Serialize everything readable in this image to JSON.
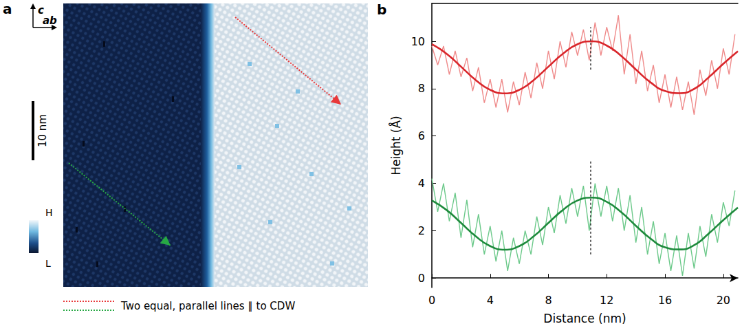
{
  "panel_a": {
    "label": "a",
    "axis_up": "c",
    "axis_right": "ab",
    "scale_bar": "10 nm",
    "colorbar_high": "H",
    "colorbar_low": "L",
    "legend_text": "Two equal, parallel lines ∥ to CDW",
    "lines": [
      {
        "color": "#e8393a"
      },
      {
        "color": "#27a844"
      }
    ]
  },
  "chart_data": {
    "type": "line",
    "panel_label": "b",
    "x_label": "Distance (nm)",
    "y_label": "Height (Å)",
    "xlim": [
      0,
      21
    ],
    "ylim": [
      -0.4,
      11.6
    ],
    "xticks": [
      0,
      4,
      8,
      12,
      16,
      20
    ],
    "yticks": [
      0,
      2,
      4,
      6,
      8,
      10
    ],
    "series": [
      {
        "color": "#ef8a8a",
        "line_style": "thin",
        "x": [
          0.0,
          0.4,
          0.8,
          1.2,
          1.6,
          2.0,
          2.4,
          2.8,
          3.2,
          3.6,
          4.0,
          4.4,
          4.8,
          5.2,
          5.6,
          6.0,
          6.4,
          6.8,
          7.2,
          7.6,
          8.0,
          8.4,
          8.8,
          9.2,
          9.6,
          10.0,
          10.4,
          10.8,
          11.2,
          11.6,
          12.0,
          12.4,
          12.8,
          13.2,
          13.6,
          14.0,
          14.4,
          14.8,
          15.2,
          15.6,
          16.0,
          16.4,
          16.8,
          17.2,
          17.6,
          18.0,
          18.4,
          18.8,
          19.2,
          19.6,
          20.0,
          20.4,
          20.8
        ],
        "values": [
          9.8,
          9.0,
          9.8,
          8.6,
          9.6,
          8.5,
          9.3,
          7.9,
          8.9,
          7.4,
          8.4,
          7.2,
          8.4,
          7.0,
          8.3,
          7.3,
          8.7,
          7.6,
          9.1,
          8.0,
          9.6,
          8.4,
          10.0,
          8.9,
          10.4,
          9.4,
          10.5,
          9.2,
          10.8,
          9.4,
          10.6,
          9.6,
          11.1,
          8.6,
          10.3,
          8.2,
          9.6,
          7.9,
          9.0,
          7.4,
          8.6,
          7.2,
          8.5,
          7.1,
          8.3,
          6.9,
          8.8,
          7.7,
          9.2,
          8.0,
          9.7,
          8.6,
          10.3
        ]
      },
      {
        "color": "#d9262b",
        "line_style": "thick",
        "x": [
          0,
          1,
          2,
          3,
          4,
          5,
          6,
          7,
          8,
          9,
          10,
          11,
          12,
          13,
          14,
          15,
          16,
          17,
          18,
          19,
          20,
          21
        ],
        "values": [
          9.88,
          9.48,
          8.93,
          8.37,
          7.95,
          7.8,
          7.95,
          8.37,
          8.93,
          9.48,
          9.88,
          10.0,
          9.82,
          9.38,
          8.81,
          8.27,
          7.9,
          7.81,
          7.99,
          8.48,
          9.05,
          9.58
        ]
      },
      {
        "color": "#6cc98a",
        "line_style": "thin",
        "x": [
          0.0,
          0.4,
          0.8,
          1.2,
          1.6,
          2.0,
          2.4,
          2.8,
          3.2,
          3.6,
          4.0,
          4.4,
          4.8,
          5.2,
          5.6,
          6.0,
          6.4,
          6.8,
          7.2,
          7.6,
          8.0,
          8.4,
          8.8,
          9.2,
          9.6,
          10.0,
          10.4,
          10.8,
          11.2,
          11.6,
          12.0,
          12.4,
          12.8,
          13.2,
          13.6,
          14.0,
          14.4,
          14.8,
          15.2,
          15.6,
          16.0,
          16.4,
          16.8,
          17.2,
          17.6,
          18.0,
          18.4,
          18.8,
          19.2,
          19.6,
          20.0,
          20.4,
          20.8
        ],
        "values": [
          4.2,
          2.8,
          4.0,
          2.4,
          3.6,
          1.7,
          3.3,
          1.3,
          2.7,
          1.0,
          2.2,
          0.7,
          2.0,
          0.3,
          1.7,
          0.6,
          2.0,
          1.0,
          2.6,
          1.4,
          3.0,
          1.9,
          3.5,
          2.3,
          3.8,
          2.6,
          3.9,
          2.0,
          4.0,
          2.6,
          3.9,
          2.4,
          3.8,
          2.0,
          3.5,
          1.5,
          3.0,
          1.0,
          2.4,
          0.6,
          1.9,
          0.3,
          1.8,
          0.1,
          1.9,
          0.4,
          2.2,
          0.9,
          2.7,
          1.5,
          3.2,
          2.2,
          3.7
        ]
      },
      {
        "color": "#1e8a3c",
        "line_style": "thick",
        "x": [
          0,
          1,
          2,
          3,
          4,
          5,
          6,
          7,
          8,
          9,
          10,
          11,
          12,
          13,
          14,
          15,
          16,
          17,
          18,
          19,
          20,
          21
        ],
        "values": [
          3.28,
          2.88,
          2.33,
          1.77,
          1.35,
          1.2,
          1.35,
          1.77,
          2.33,
          2.88,
          3.28,
          3.4,
          3.22,
          2.78,
          2.21,
          1.67,
          1.3,
          1.21,
          1.39,
          1.88,
          2.45,
          2.98
        ]
      },
      {
        "color": "#000000",
        "line_style": "dashed",
        "x": [
          10.9,
          10.9
        ],
        "values": [
          8.8,
          10.6
        ]
      },
      {
        "color": "#000000",
        "line_style": "dashed",
        "x": [
          10.9,
          10.9
        ],
        "values": [
          1.0,
          5.0
        ]
      }
    ]
  }
}
